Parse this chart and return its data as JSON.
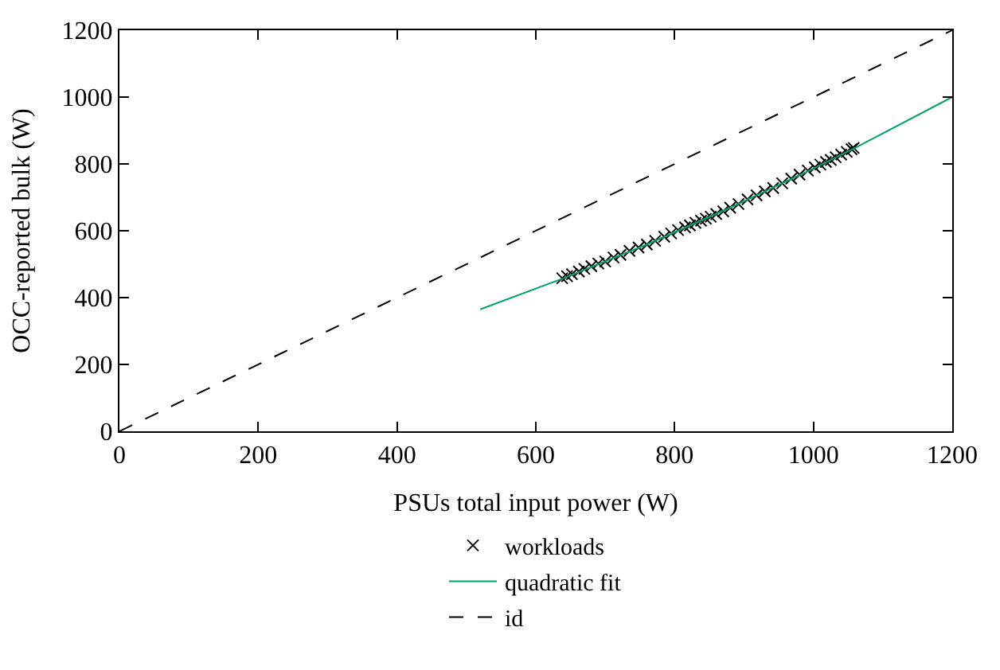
{
  "chart_data": {
    "type": "scatter",
    "xlabel": "PSUs total input power (W)",
    "ylabel": "OCC-reported bulk (W)",
    "xlim": [
      0,
      1200
    ],
    "ylim": [
      0,
      1200
    ],
    "xticks": [
      0,
      200,
      400,
      600,
      800,
      1000,
      1200
    ],
    "yticks": [
      0,
      200,
      400,
      600,
      800,
      1000,
      1200
    ],
    "legend": "bottom",
    "series": [
      {
        "name": "workloads",
        "marker": "cross",
        "color": "#000000",
        "x": [
          638,
          645,
          652,
          662,
          670,
          680,
          690,
          700,
          712,
          722,
          735,
          748,
          760,
          772,
          785,
          795,
          805,
          815,
          822,
          830,
          838,
          845,
          852,
          860,
          870,
          880,
          892,
          905,
          918,
          930,
          942,
          955,
          968,
          980,
          992,
          1002,
          1010,
          1018,
          1025,
          1032,
          1040,
          1048,
          1055,
          1058
        ],
        "values": [
          458,
          464,
          470,
          478,
          486,
          494,
          502,
          508,
          520,
          528,
          540,
          550,
          559,
          570,
          582,
          592,
          602,
          610,
          616,
          624,
          630,
          636,
          642,
          650,
          658,
          669,
          680,
          694,
          706,
          718,
          728,
          742,
          756,
          768,
          780,
          790,
          798,
          806,
          812,
          820,
          828,
          836,
          844,
          848
        ]
      },
      {
        "name": "quadratic fit",
        "type": "line",
        "marker": "none",
        "line_style": "solid",
        "color": "#009e73",
        "x": [
          520,
          640,
          760,
          880,
          1000,
          1060,
          1200
        ],
        "values": [
          365,
          458,
          559,
          669,
          786,
          848,
          1000
        ]
      },
      {
        "name": "id",
        "type": "line",
        "marker": "none",
        "line_style": "dashed",
        "color": "#000000",
        "x": [
          0,
          1200
        ],
        "values": [
          0,
          1200
        ]
      }
    ]
  }
}
